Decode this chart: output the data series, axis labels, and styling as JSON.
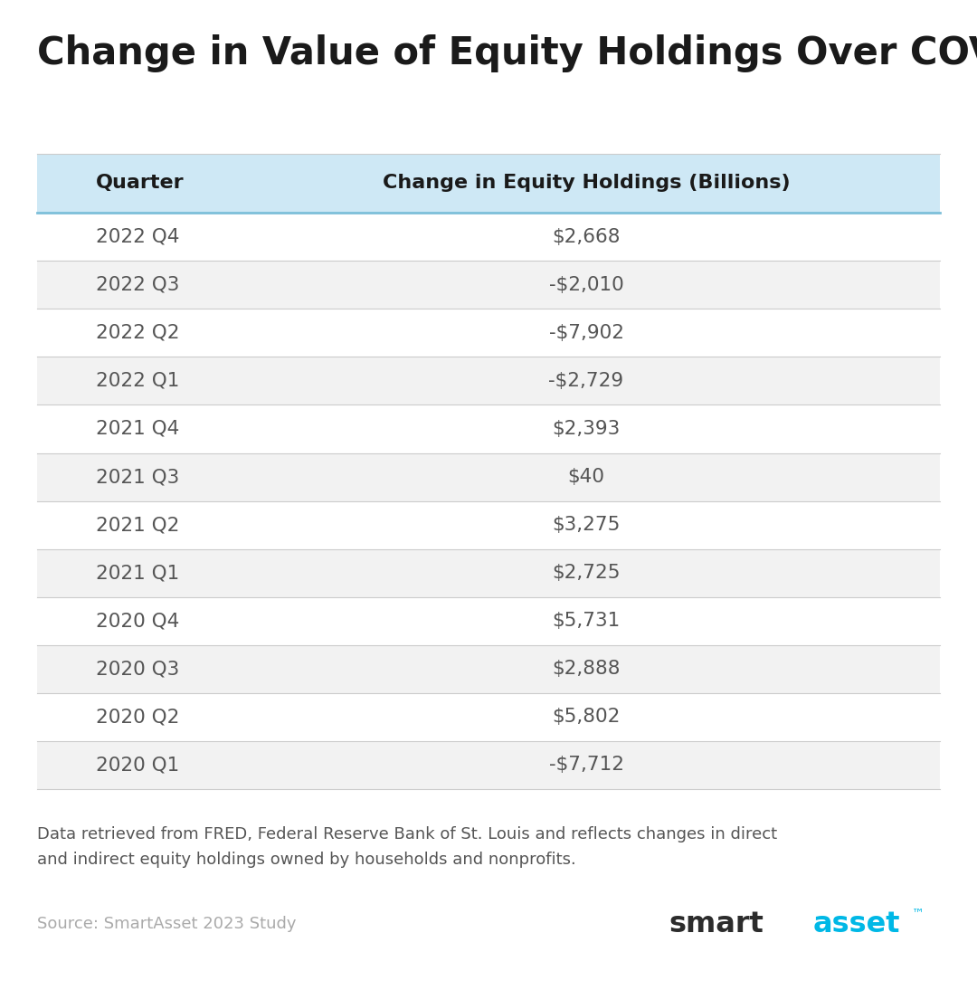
{
  "title": "Change in Value of Equity Holdings Over COVID",
  "col1_header": "Quarter",
  "col2_header": "Change in Equity Holdings (Billions)",
  "rows": [
    [
      "2022 Q4",
      "$2,668"
    ],
    [
      "2022 Q3",
      "-$2,010"
    ],
    [
      "2022 Q2",
      "-$7,902"
    ],
    [
      "2022 Q1",
      "-$2,729"
    ],
    [
      "2021 Q4",
      "$2,393"
    ],
    [
      "2021 Q3",
      "$40"
    ],
    [
      "2021 Q2",
      "$3,275"
    ],
    [
      "2021 Q1",
      "$2,725"
    ],
    [
      "2020 Q4",
      "$5,731"
    ],
    [
      "2020 Q3",
      "$2,888"
    ],
    [
      "2020 Q2",
      "$5,802"
    ],
    [
      "2020 Q1",
      "-$7,712"
    ]
  ],
  "header_bg": "#cee8f5",
  "row_bg_odd": "#f2f2f2",
  "row_bg_even": "#ffffff",
  "header_text_color": "#1a1a1a",
  "row_text_color": "#555555",
  "title_color": "#1a1a1a",
  "divider_color": "#7dbfd9",
  "row_divider_color": "#cccccc",
  "footnote_text": "Data retrieved from FRED, Federal Reserve Bank of St. Louis and reflects changes in direct\nand indirect equity holdings owned by households and nonprofits.",
  "source_text": "Source: SmartAsset 2023 Study",
  "source_color": "#aaaaaa",
  "smartasset_smart_color": "#2c2c2c",
  "smartasset_asset_color": "#00b8e6",
  "bg_color": "#ffffff"
}
